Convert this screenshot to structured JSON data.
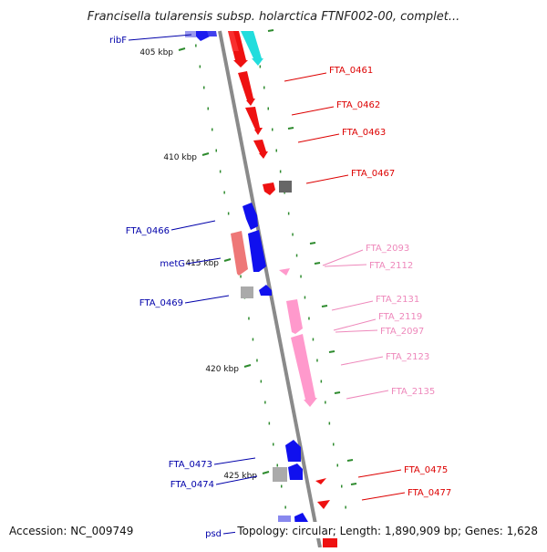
{
  "title": "Francisella tularensis subsp. holarctica FTNF002-00, complet...",
  "footer": {
    "accession": "Accession: NC_009749",
    "summary": "Topology: circular; Length: 1,890,909 bp; Genes: 1,628"
  },
  "colors": {
    "backbone": "#8a8a8a",
    "tick": "#2e8b2e",
    "left_label": "#0000aa",
    "right_label_red": "#dd0000",
    "right_label_pink": "#ee88bb",
    "gene_blue": "#1010ee",
    "gene_red": "#ee1111",
    "gene_cyan": "#22dddd",
    "gene_pink": "#ff99cc",
    "gene_salmon": "#ee7777",
    "gene_gray": "#aaaaaa",
    "gene_darkgray": "#666666"
  },
  "kbp_labels": [
    {
      "text": "405 kbp",
      "kbp": 405
    },
    {
      "text": "410 kbp",
      "kbp": 410
    },
    {
      "text": "415 kbp",
      "kbp": 415
    },
    {
      "text": "420 kbp",
      "kbp": 420
    },
    {
      "text": "425 kbp",
      "kbp": 425
    }
  ],
  "left_labels": [
    {
      "text": "ribF"
    },
    {
      "text": "FTA_0466"
    },
    {
      "text": "metG"
    },
    {
      "text": "FTA_0469"
    },
    {
      "text": "FTA_0473"
    },
    {
      "text": "FTA_0474"
    },
    {
      "text": "psd"
    }
  ],
  "right_labels": [
    {
      "text": "FTA_0461",
      "tone": "red"
    },
    {
      "text": "FTA_0462",
      "tone": "red"
    },
    {
      "text": "FTA_0463",
      "tone": "red"
    },
    {
      "text": "FTA_0467",
      "tone": "red"
    },
    {
      "text": "FTA_2093",
      "tone": "pink"
    },
    {
      "text": "FTA_2112",
      "tone": "pink"
    },
    {
      "text": "FTA_2131",
      "tone": "pink"
    },
    {
      "text": "FTA_2119",
      "tone": "pink"
    },
    {
      "text": "FTA_2097",
      "tone": "pink"
    },
    {
      "text": "FTA_2123",
      "tone": "pink"
    },
    {
      "text": "FTA_2135",
      "tone": "pink"
    },
    {
      "text": "FTA_0475",
      "tone": "red"
    },
    {
      "text": "FTA_0477",
      "tone": "red"
    }
  ]
}
